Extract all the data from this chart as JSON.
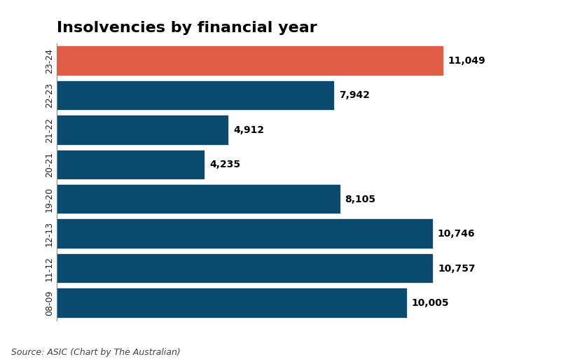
{
  "title": "Insolvencies by financial year",
  "categories": [
    "08-09",
    "11-12",
    "12-13",
    "19-20",
    "20-21",
    "21-22",
    "22-23",
    "23-24"
  ],
  "values": [
    10005,
    10757,
    10746,
    8105,
    4235,
    4912,
    7942,
    11049
  ],
  "bar_colors": [
    "#0a4a6e",
    "#0a4a6e",
    "#0a4a6e",
    "#0a4a6e",
    "#0a4a6e",
    "#0a4a6e",
    "#0a4a6e",
    "#e05c45"
  ],
  "value_labels": [
    "10,005",
    "10,757",
    "10,746",
    "8,105",
    "4,235",
    "4,912",
    "7,942",
    "11,049"
  ],
  "source_text": "Source: ASIC (Chart by The Australian)",
  "xlim": [
    0,
    12500
  ],
  "background_color": "#ffffff",
  "title_fontsize": 16,
  "label_fontsize": 10,
  "tick_fontsize": 9,
  "source_fontsize": 9,
  "bar_height": 0.88
}
